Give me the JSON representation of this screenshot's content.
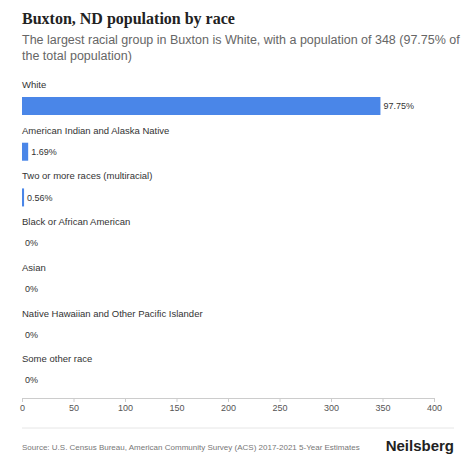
{
  "chart_data": {
    "type": "bar",
    "orientation": "horizontal",
    "title": "Buxton, ND population by race",
    "subtitle": "The largest racial group in Buxton is White, with a population of 348 (97.75% of the total population)",
    "categories": [
      "White",
      "American Indian and Alaska Native",
      "Two or more races (multiracial)",
      "Black or African American",
      "Asian",
      "Native Hawaiian and Other Pacific Islander",
      "Some other race"
    ],
    "values": [
      348,
      6,
      2,
      0,
      0,
      0,
      0
    ],
    "value_labels": [
      "97.75%",
      "1.69%",
      "0.56%",
      "0%",
      "0%",
      "0%",
      "0%"
    ],
    "data_labels": true,
    "color": "#4a86e8",
    "xlim": [
      0,
      400
    ],
    "xticks": [
      0,
      50,
      100,
      150,
      200,
      250,
      300,
      350,
      400
    ],
    "grid": false,
    "annotations": [
      "Source: U.S. Census Bureau, American Community Survey (ACS) 2017-2021 5-Year Estimates",
      "Neilsberg"
    ]
  }
}
